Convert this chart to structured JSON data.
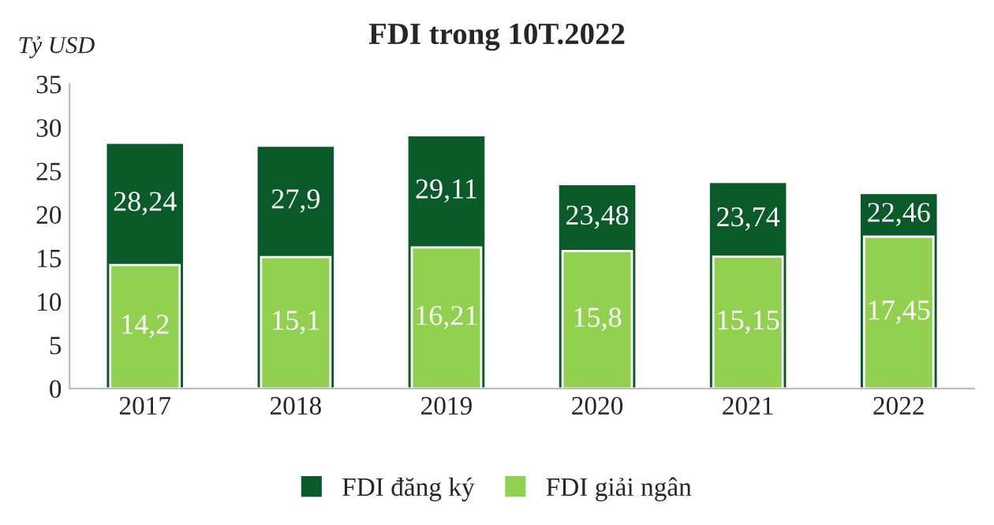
{
  "chart_data": {
    "type": "bar",
    "title": "FDI trong 10T.2022",
    "ylabel": "Tỷ USD",
    "categories": [
      "2017",
      "2018",
      "2019",
      "2020",
      "2021",
      "2022"
    ],
    "series": [
      {
        "name": "FDI đăng ký",
        "color": "#0b5a2a",
        "values": [
          28.24,
          27.9,
          29.11,
          23.48,
          23.74,
          22.46
        ],
        "value_labels": [
          "28,24",
          "27,9",
          "29,11",
          "23,48",
          "23,74",
          "22,46"
        ]
      },
      {
        "name": "FDI giải ngân",
        "color": "#92d050",
        "values": [
          14.2,
          15.1,
          16.21,
          15.8,
          15.15,
          17.45
        ],
        "value_labels": [
          "14,2",
          "15,1",
          "16,21",
          "15,8",
          "15,15",
          "17,45"
        ]
      }
    ],
    "ylim": [
      0,
      35
    ],
    "yticks": [
      0,
      5,
      10,
      15,
      20,
      25,
      30,
      35
    ],
    "grid": false,
    "legend": "bottom"
  }
}
